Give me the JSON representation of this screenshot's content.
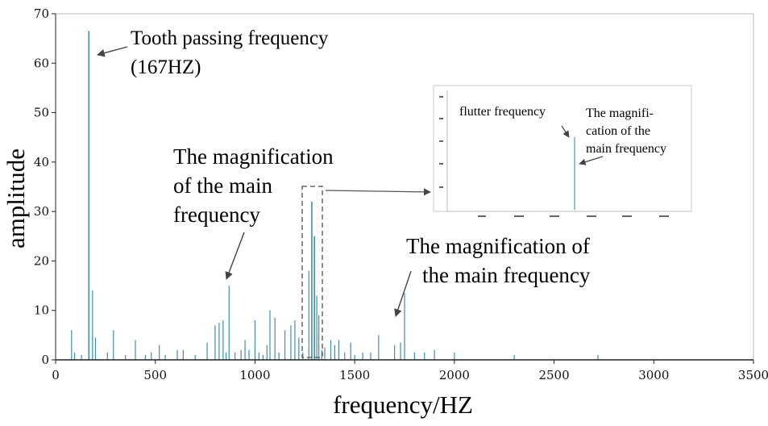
{
  "chart_data": {
    "type": "bar",
    "title": "",
    "xlabel": "frequency/HZ",
    "ylabel": "amplitude",
    "xlim": [
      0,
      3500
    ],
    "ylim": [
      0,
      70
    ],
    "xticks": [
      0,
      500,
      1000,
      1500,
      2000,
      2500,
      3000,
      3500
    ],
    "yticks": [
      0,
      10,
      20,
      30,
      40,
      50,
      60,
      70
    ],
    "grid": false,
    "legend": "none",
    "series": [
      {
        "color": "#3f8fb0",
        "x": [
          80,
          95,
          130,
          167,
          185,
          200,
          260,
          290,
          350,
          400,
          450,
          480,
          520,
          550,
          610,
          640,
          700,
          760,
          800,
          820,
          840,
          855,
          870,
          900,
          930,
          950,
          970,
          1000,
          1020,
          1040,
          1060,
          1075,
          1100,
          1120,
          1150,
          1180,
          1200,
          1220,
          1240,
          1270,
          1285,
          1298,
          1310,
          1320,
          1335,
          1350,
          1380,
          1400,
          1420,
          1450,
          1480,
          1500,
          1540,
          1580,
          1620,
          1700,
          1730,
          1750,
          1800,
          1850,
          1900,
          2000,
          2300,
          2720
        ],
        "values": [
          6,
          1.5,
          1,
          66.5,
          14,
          4.5,
          1.5,
          6,
          1,
          4,
          1,
          1.5,
          3,
          1,
          2,
          2,
          1,
          3.5,
          7,
          7.5,
          8,
          1.5,
          15,
          1.5,
          2,
          4,
          2,
          8,
          1.5,
          1,
          3,
          10,
          8.5,
          1.5,
          6,
          7,
          8,
          4.5,
          1.5,
          18,
          32,
          25,
          13,
          9,
          2,
          2.5,
          4,
          3,
          4,
          1.5,
          3.5,
          1,
          1.5,
          1.5,
          5,
          3,
          3.5,
          13.5,
          1.5,
          1.5,
          2,
          1.5,
          1,
          1
        ]
      }
    ],
    "annotations": [
      {
        "lines": [
          "Tooth passing frequency",
          "(167HZ)"
        ]
      },
      {
        "lines": [
          "The magnification",
          "of the main",
          "frequency"
        ]
      },
      {
        "lines": [
          "The magnification of",
          "the main frequency"
        ]
      }
    ],
    "inset": {
      "annotations": [
        {
          "lines": [
            "flutter frequency"
          ]
        },
        {
          "lines": [
            "The magnifi-",
            "cation of the",
            "main frequency"
          ]
        }
      ]
    }
  },
  "colors": {
    "line": "#3f8fb0",
    "axis": "#222222",
    "box": "#888888"
  }
}
